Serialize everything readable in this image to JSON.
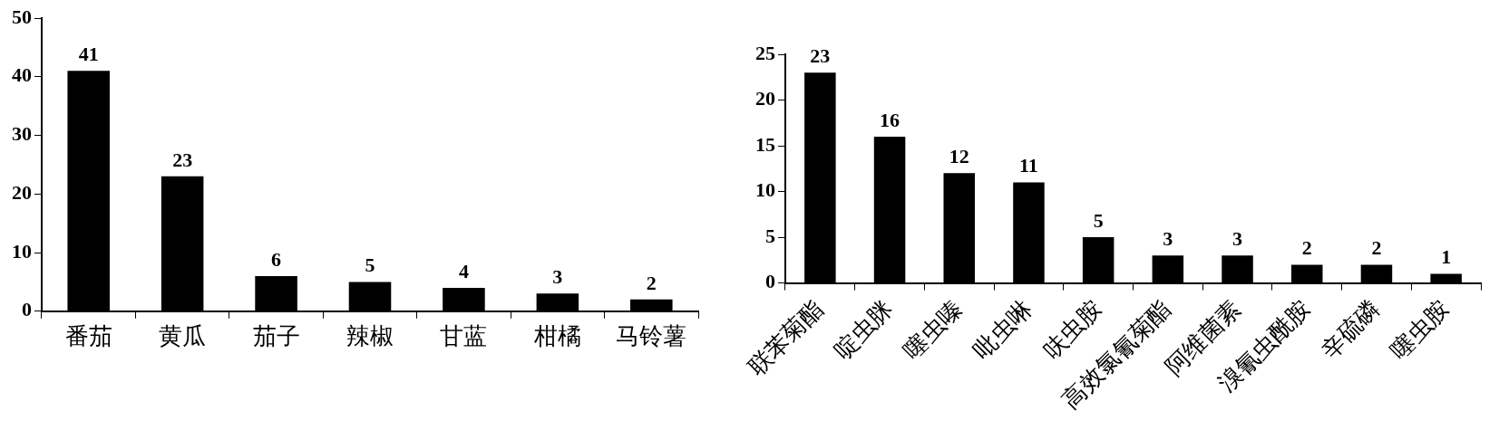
{
  "chart_data": [
    {
      "type": "bar",
      "categories": [
        "番茄",
        "黄瓜",
        "茄子",
        "辣椒",
        "甘蓝",
        "柑橘",
        "马铃薯"
      ],
      "values": [
        41,
        23,
        6,
        5,
        4,
        3,
        2
      ],
      "color": "#000000",
      "ylim": [
        0,
        50
      ],
      "yticks": [
        0,
        10,
        20,
        30,
        40,
        50
      ],
      "grid": false,
      "legend": false,
      "data_labels": true
    },
    {
      "type": "bar",
      "categories": [
        "联苯菊酯",
        "啶虫脒",
        "噻虫嗪",
        "吡虫啉",
        "呋虫胺",
        "高效氯氰菊酯",
        "阿维菌素",
        "溴氰虫酰胺",
        "辛硫磷",
        "噻虫胺"
      ],
      "values": [
        23,
        16,
        12,
        11,
        5,
        3,
        3,
        2,
        2,
        1
      ],
      "color": "#000000",
      "ylim": [
        0,
        25
      ],
      "yticks": [
        0,
        5,
        10,
        15,
        20,
        25
      ],
      "grid": false,
      "legend": false,
      "data_labels": true
    }
  ]
}
